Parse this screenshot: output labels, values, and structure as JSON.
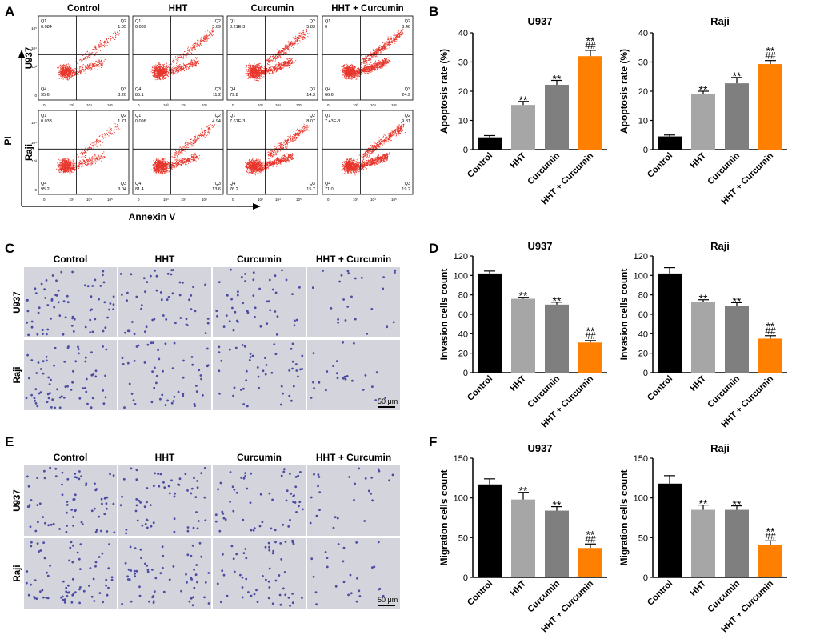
{
  "panels": {
    "A": "A",
    "B": "B",
    "C": "C",
    "D": "D",
    "E": "E",
    "F": "F"
  },
  "groups": [
    "Control",
    "HHT",
    "Curcumin",
    "HHT + Curcumin"
  ],
  "cell_lines": [
    "U937",
    "Raji"
  ],
  "colors": {
    "control": "#000000",
    "hht": "#a6a6a6",
    "curcumin": "#7f7f7f",
    "combo": "#ff8000",
    "dots": "#e8342a",
    "stain": "#3c3c9c",
    "well": "#d4d4dc"
  },
  "flow": {
    "x_axis_label": "Annexin V",
    "y_axis_label": "PI",
    "quadrants": [
      [
        {
          "q1": "0.084",
          "q2": "1.05",
          "q3": "3.26",
          "q4": "95.6"
        },
        {
          "q1": "0.039",
          "q2": "3.69",
          "q3": "11.2",
          "q4": "85.1"
        },
        {
          "q1": "8.21E-3",
          "q2": "5.83",
          "q3": "14.3",
          "q4": "79.8"
        },
        {
          "q1": "0",
          "q2": "8.46",
          "q3": "24.9",
          "q4": "66.6"
        }
      ],
      [
        {
          "q1": "0.033",
          "q2": "1.71",
          "q3": "3.04",
          "q4": "95.2"
        },
        {
          "q1": "0.098",
          "q2": "4.94",
          "q3": "13.6",
          "q4": "81.4"
        },
        {
          "q1": "7.61E-3",
          "q2": "8.07",
          "q3": "15.7",
          "q4": "76.2"
        },
        {
          "q1": "7.43E-3",
          "q2": "9.81",
          "q3": "19.2",
          "q4": "71.0"
        }
      ]
    ]
  },
  "scale_bar": "50 μm",
  "sig": {
    "star": "**",
    "hash": "##"
  },
  "chart_data": [
    {
      "type": "bar",
      "panel": "B",
      "title": "U937",
      "ylabel": "Apoptosis rate (%)",
      "categories": [
        "Control",
        "HHT",
        "Curcumin",
        "HHT + Curcumin"
      ],
      "values": [
        4.2,
        15.3,
        22.2,
        32.0
      ],
      "errors": [
        0.6,
        1.2,
        1.5,
        2.0
      ],
      "ylim": [
        0,
        40
      ],
      "yticks": [
        0,
        10,
        20,
        30,
        40
      ],
      "stars": [
        false,
        true,
        true,
        true
      ],
      "hashes": [
        false,
        false,
        false,
        true
      ]
    },
    {
      "type": "bar",
      "panel": "B",
      "title": "Raji",
      "ylabel": "Apoptosis rate (%)",
      "categories": [
        "Control",
        "HHT",
        "Curcumin",
        "HHT + Curcumin"
      ],
      "values": [
        4.5,
        19.0,
        22.7,
        29.3
      ],
      "errors": [
        0.5,
        1.0,
        2.0,
        1.2
      ],
      "ylim": [
        0,
        40
      ],
      "yticks": [
        0,
        10,
        20,
        30,
        40
      ],
      "stars": [
        false,
        true,
        true,
        true
      ],
      "hashes": [
        false,
        false,
        false,
        true
      ]
    },
    {
      "type": "bar",
      "panel": "D",
      "title": "U937",
      "ylabel": "Invasion cells count",
      "categories": [
        "Control",
        "HHT",
        "Curcumin",
        "HHT + Curcumin"
      ],
      "values": [
        102,
        76,
        70,
        31
      ],
      "errors": [
        2.5,
        1.5,
        2.5,
        2
      ],
      "ylim": [
        0,
        120
      ],
      "yticks": [
        0,
        20,
        40,
        60,
        80,
        100,
        120
      ],
      "stars": [
        false,
        true,
        true,
        true
      ],
      "hashes": [
        false,
        false,
        false,
        true
      ]
    },
    {
      "type": "bar",
      "panel": "D",
      "title": "Raji",
      "ylabel": "Invasion cells count",
      "categories": [
        "Control",
        "HHT",
        "Curcumin",
        "HHT + Curcumin"
      ],
      "values": [
        102,
        73,
        69,
        35
      ],
      "errors": [
        6,
        2,
        3,
        3
      ],
      "ylim": [
        0,
        120
      ],
      "yticks": [
        0,
        20,
        40,
        60,
        80,
        100,
        120
      ],
      "stars": [
        false,
        true,
        true,
        true
      ],
      "hashes": [
        false,
        false,
        false,
        true
      ]
    },
    {
      "type": "bar",
      "panel": "F",
      "title": "U937",
      "ylabel": "Migration cells count",
      "categories": [
        "Control",
        "HHT",
        "Curcumin",
        "HHT + Curcumin"
      ],
      "values": [
        117,
        98,
        84,
        37
      ],
      "errors": [
        7,
        9,
        5,
        5
      ],
      "ylim": [
        0,
        150
      ],
      "yticks": [
        0,
        50,
        100,
        150
      ],
      "stars": [
        false,
        true,
        true,
        true
      ],
      "hashes": [
        false,
        false,
        false,
        true
      ]
    },
    {
      "type": "bar",
      "panel": "F",
      "title": "Raji",
      "ylabel": "Migration cells count",
      "categories": [
        "Control",
        "HHT",
        "Curcumin",
        "HHT + Curcumin"
      ],
      "values": [
        118,
        85,
        85,
        41
      ],
      "errors": [
        10,
        6,
        5,
        5
      ],
      "ylim": [
        0,
        150
      ],
      "yticks": [
        0,
        50,
        100,
        150
      ],
      "stars": [
        false,
        true,
        true,
        true
      ],
      "hashes": [
        false,
        false,
        false,
        true
      ]
    }
  ]
}
